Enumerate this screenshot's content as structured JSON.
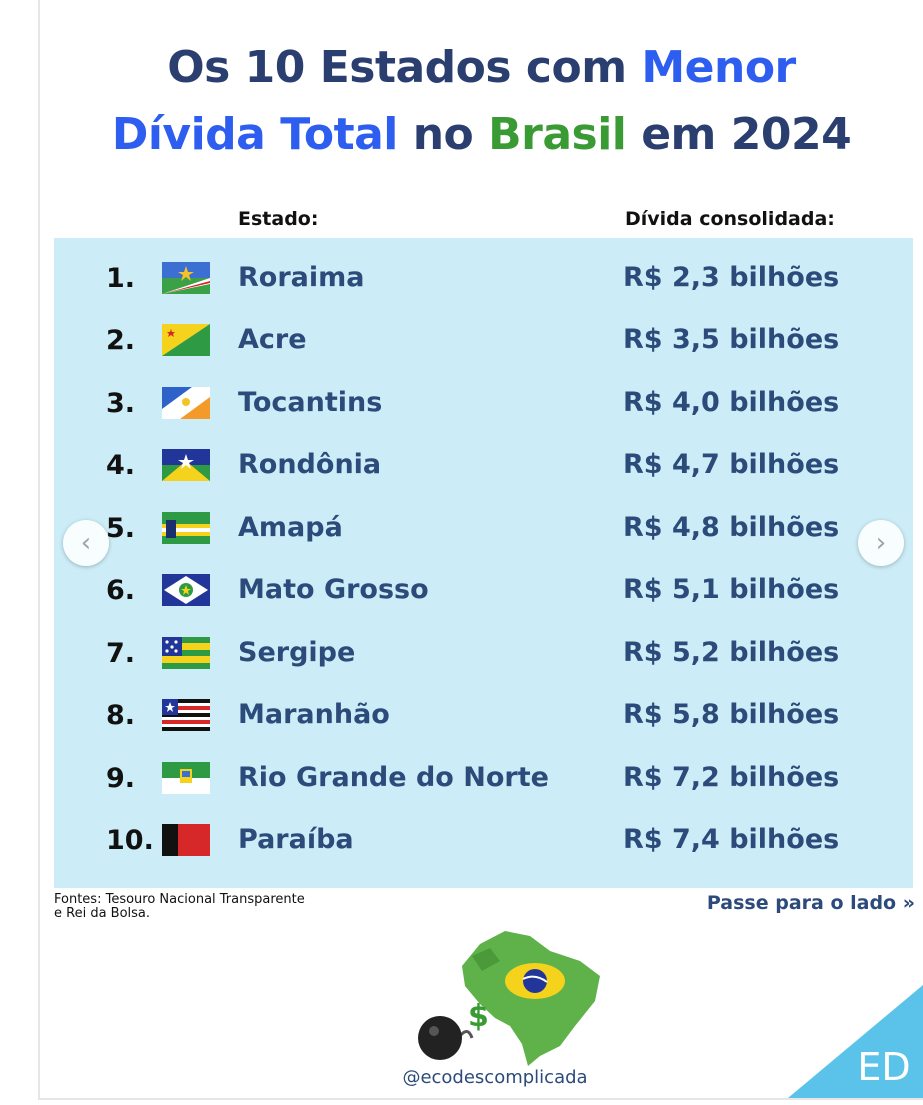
{
  "title": {
    "line1_a": "Os 10 Estados com ",
    "line1_b": "Menor",
    "line2_a": "Dívida Total",
    "line2_b": " no ",
    "line2_c": "Brasil",
    "line2_d": " em 2024"
  },
  "columns": {
    "state": "Estado:",
    "debt": "Dívida consolidada:"
  },
  "rows": [
    {
      "rank": "1.",
      "state": "Roraima",
      "debt": "R$ 2,3 bilhões",
      "flag_icon": "roraima-flag-icon"
    },
    {
      "rank": "2.",
      "state": "Acre",
      "debt": "R$ 3,5 bilhões",
      "flag_icon": "acre-flag-icon"
    },
    {
      "rank": "3.",
      "state": "Tocantins",
      "debt": "R$ 4,0 bilhões",
      "flag_icon": "tocantins-flag-icon"
    },
    {
      "rank": "4.",
      "state": "Rondônia",
      "debt": "R$ 4,7 bilhões",
      "flag_icon": "rondonia-flag-icon"
    },
    {
      "rank": "5.",
      "state": "Amapá",
      "debt": "R$ 4,8 bilhões",
      "flag_icon": "amapa-flag-icon"
    },
    {
      "rank": "6.",
      "state": "Mato Grosso",
      "debt": "R$ 5,1 bilhões",
      "flag_icon": "mato-grosso-flag-icon"
    },
    {
      "rank": "7.",
      "state": "Sergipe",
      "debt": "R$ 5,2 bilhões",
      "flag_icon": "sergipe-flag-icon"
    },
    {
      "rank": "8.",
      "state": "Maranhão",
      "debt": "R$ 5,8 bilhões",
      "flag_icon": "maranhao-flag-icon"
    },
    {
      "rank": "9.",
      "state": "Rio Grande do Norte",
      "debt": "R$ 7,2 bilhões",
      "flag_icon": "rio-grande-do-norte-flag-icon"
    },
    {
      "rank": "10.",
      "state": "Paraíba",
      "debt": "R$ 7,4 bilhões",
      "flag_icon": "paraiba-flag-icon"
    }
  ],
  "nav": {
    "prev_icon": "chevron-left-icon",
    "next_icon": "chevron-right-icon",
    "prev_glyph": "‹",
    "next_glyph": "›"
  },
  "footer": {
    "sources_line1": "Fontes: Tesouro Nacional Transparente",
    "sources_line2": "e Rei da Bolsa.",
    "swipe": "Passe para o lado »",
    "handle": "@ecodescomplicada",
    "brand": "ED"
  },
  "colors": {
    "title_dark": "#2a3f6f",
    "title_blue": "#2d5ef0",
    "title_green": "#3a9a33",
    "panel_bg": "#ccedf7",
    "row_text": "#2c4a7a",
    "corner": "#5bc3ea"
  }
}
